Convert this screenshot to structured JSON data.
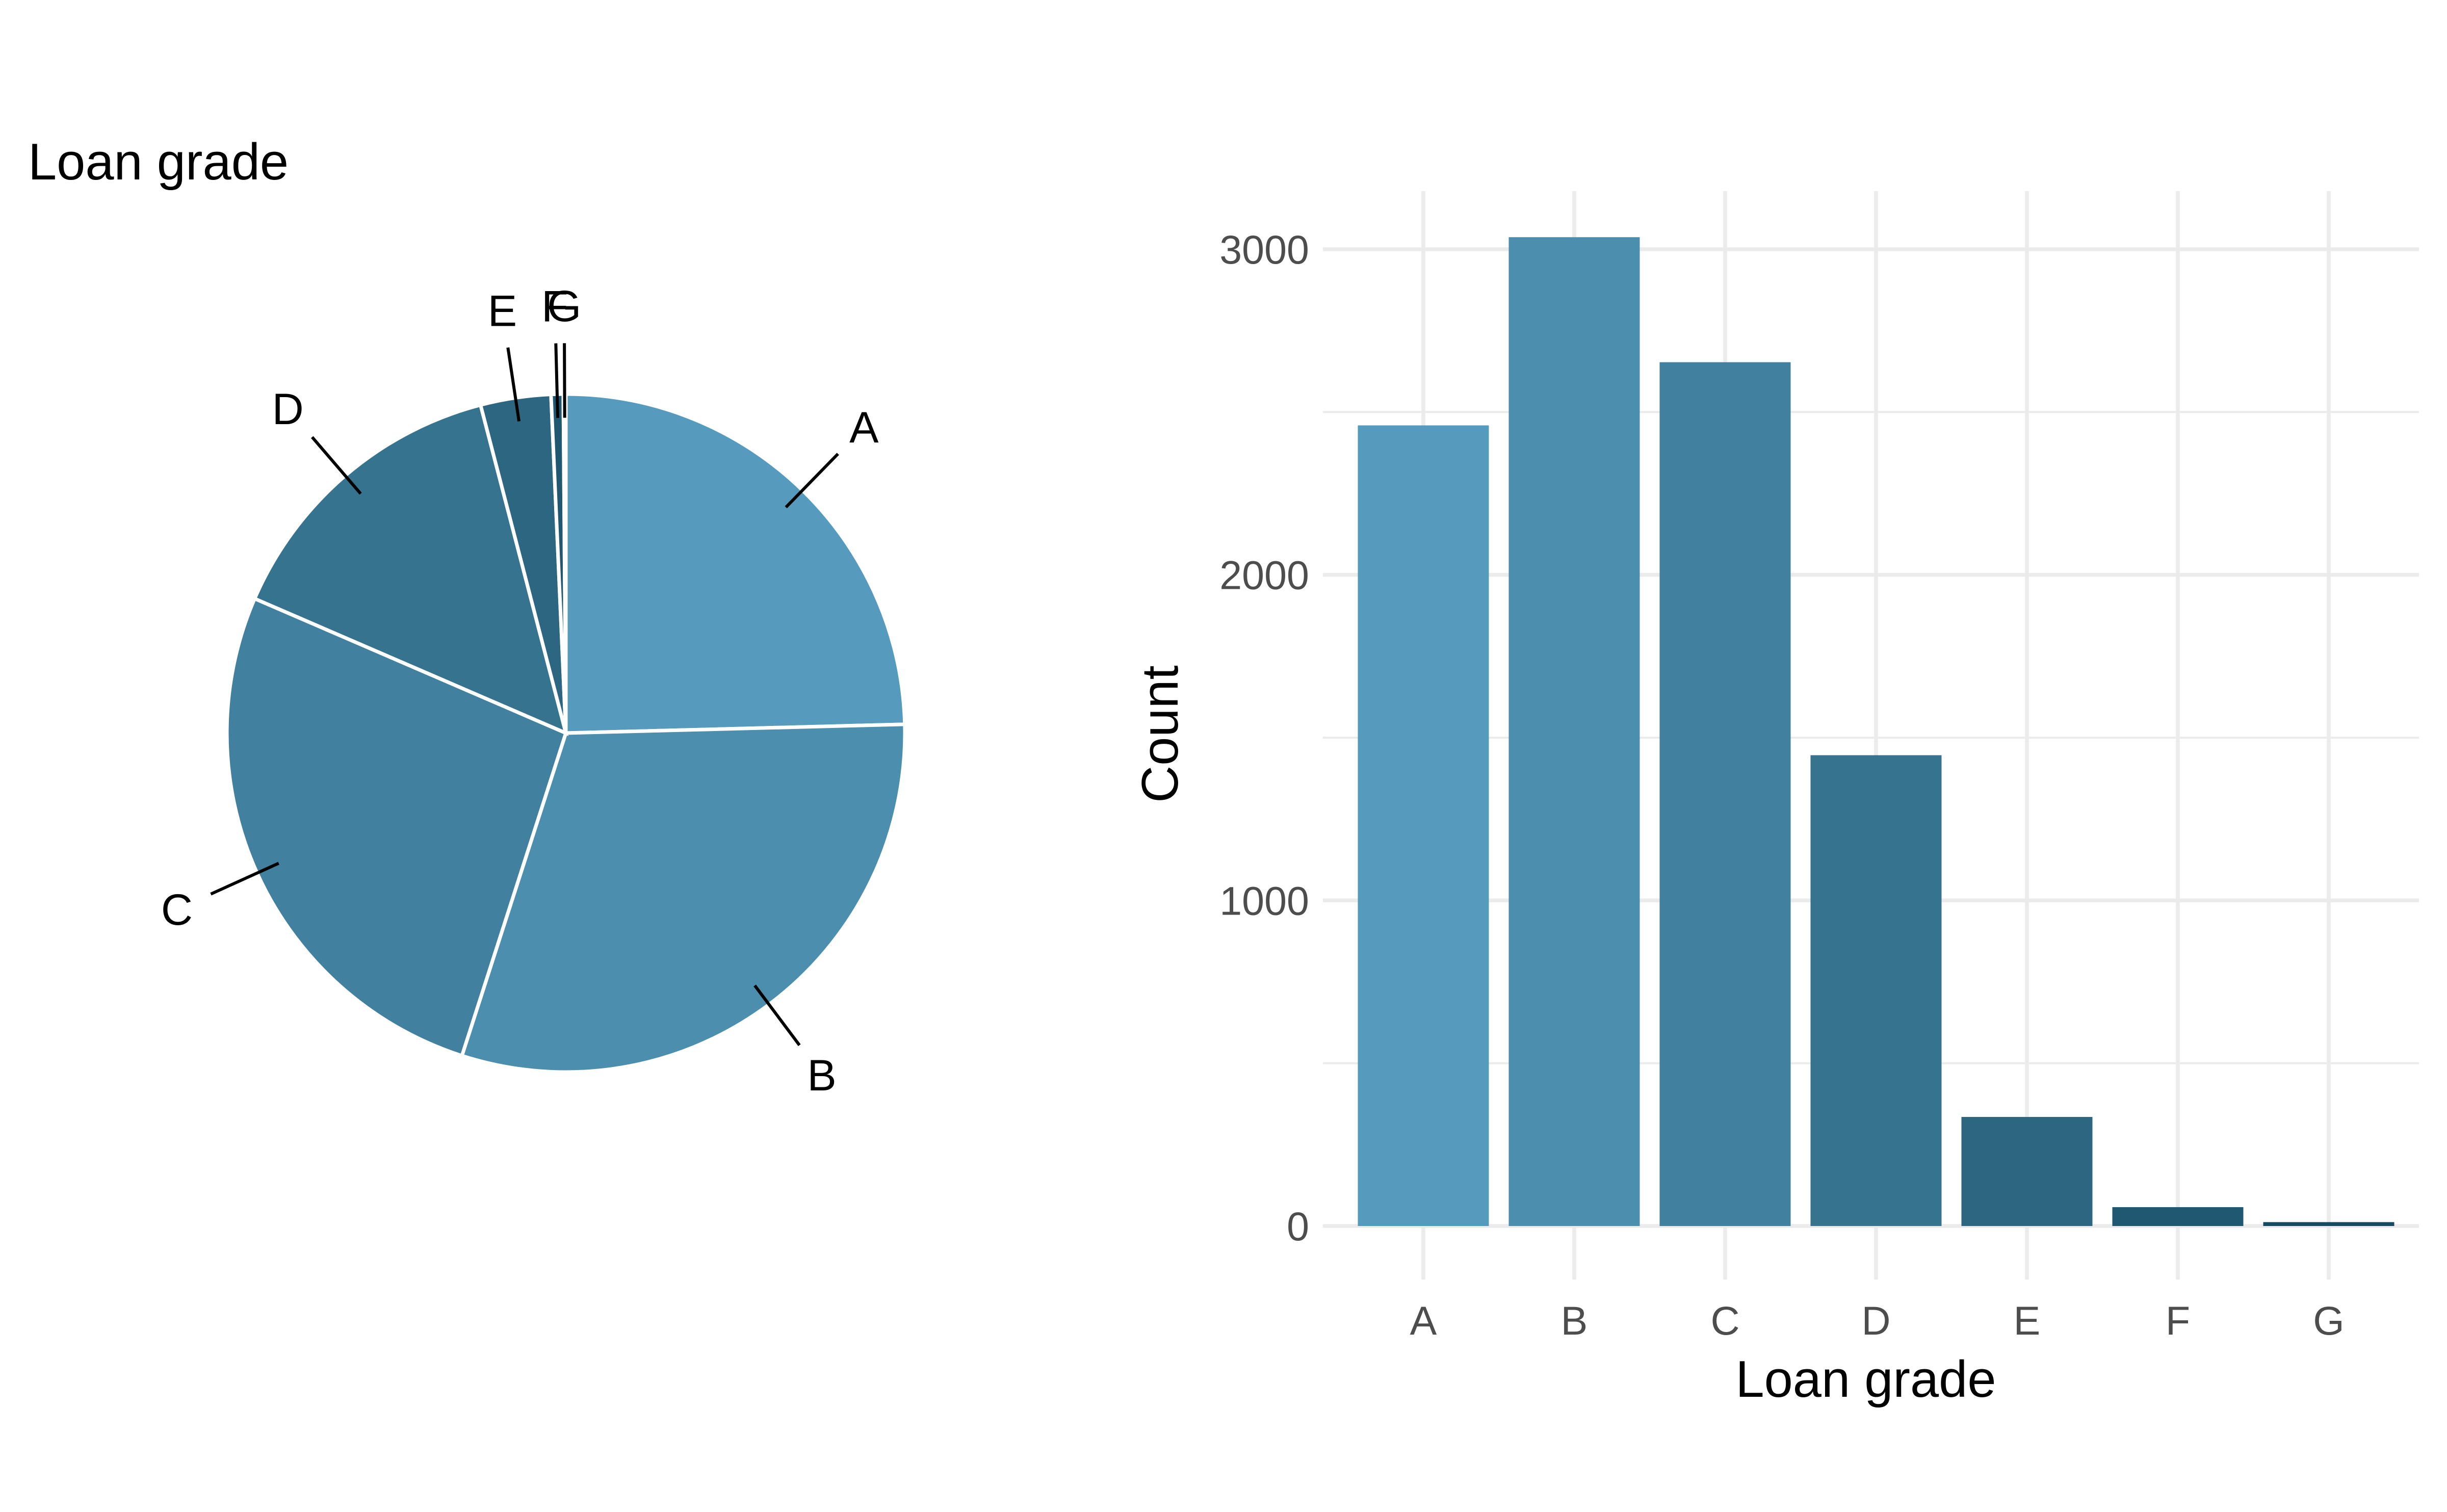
{
  "chart_data": [
    {
      "type": "pie",
      "title": "Loan grade",
      "categories": [
        "A",
        "B",
        "C",
        "D",
        "E",
        "F",
        "G"
      ],
      "values": [
        2459,
        3037,
        2653,
        1446,
        335,
        58,
        12
      ],
      "colors": [
        "#569bbd",
        "#4b8eae",
        "#41819f",
        "#36738f",
        "#2c6680",
        "#215871",
        "#174b62"
      ],
      "start_angle_deg": 0,
      "direction": "clockwise",
      "legend": "none"
    },
    {
      "type": "bar",
      "categories": [
        "A",
        "B",
        "C",
        "D",
        "E",
        "F",
        "G"
      ],
      "values": [
        2459,
        3037,
        2653,
        1446,
        335,
        58,
        12
      ],
      "colors": [
        "#569bbd",
        "#4b8eae",
        "#41819f",
        "#36738f",
        "#2c6680",
        "#215871",
        "#174b62"
      ],
      "xlabel": "Loan grade",
      "ylabel": "Count",
      "ylim": [
        0,
        3200
      ],
      "yticks": [
        0,
        1000,
        2000,
        3000
      ],
      "grid": true,
      "legend": "none"
    }
  ]
}
